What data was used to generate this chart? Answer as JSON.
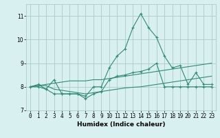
{
  "x_values": [
    0,
    1,
    2,
    3,
    4,
    5,
    6,
    7,
    8,
    9,
    10,
    11,
    12,
    13,
    14,
    15,
    16,
    17,
    18,
    19,
    20,
    21,
    22,
    23
  ],
  "line1": [
    8.0,
    8.1,
    7.9,
    8.3,
    7.7,
    7.7,
    7.7,
    7.6,
    8.0,
    8.0,
    8.8,
    9.3,
    9.6,
    10.5,
    11.1,
    10.5,
    10.1,
    9.3,
    8.8,
    8.9,
    8.1,
    8.6,
    8.1,
    8.1
  ],
  "line2": [
    8.0,
    8.0,
    7.9,
    7.7,
    7.7,
    7.7,
    7.7,
    7.5,
    7.7,
    7.8,
    8.3,
    8.45,
    8.5,
    8.6,
    8.65,
    8.75,
    9.0,
    8.0,
    8.0,
    8.0,
    8.0,
    8.0,
    8.0,
    8.0
  ],
  "line3": [
    8.0,
    8.05,
    8.1,
    8.15,
    8.2,
    8.25,
    8.25,
    8.25,
    8.3,
    8.3,
    8.35,
    8.4,
    8.45,
    8.5,
    8.55,
    8.6,
    8.65,
    8.7,
    8.75,
    8.8,
    8.85,
    8.9,
    8.95,
    9.0
  ],
  "line4": [
    8.0,
    8.05,
    8.05,
    7.9,
    7.85,
    7.8,
    7.75,
    7.7,
    7.75,
    7.8,
    7.85,
    7.9,
    7.95,
    7.98,
    8.0,
    8.05,
    8.1,
    8.15,
    8.2,
    8.25,
    8.3,
    8.35,
    8.4,
    8.45
  ],
  "color": "#2e8b74",
  "bg_color": "#d8f0f0",
  "grid_color": "#aacccc",
  "ylim": [
    7.0,
    11.5
  ],
  "yticks": [
    7,
    8,
    9,
    10,
    11
  ],
  "xticks": [
    0,
    1,
    2,
    3,
    4,
    5,
    6,
    7,
    8,
    9,
    10,
    11,
    12,
    13,
    14,
    15,
    16,
    17,
    18,
    19,
    20,
    21,
    22,
    23
  ],
  "xlabel": "Humidex (Indice chaleur)",
  "xlabel_fontsize": 6.5,
  "tick_fontsize": 5.5
}
